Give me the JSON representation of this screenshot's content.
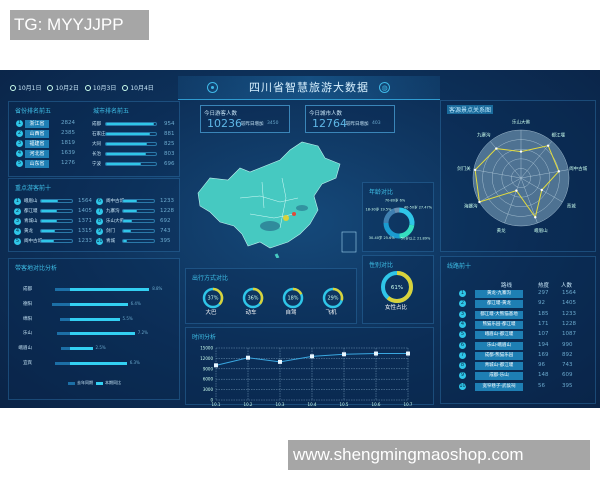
{
  "watermark_top": "TG: MYYJJPP",
  "watermark_bottom": "www.shengmingmaoshop.com",
  "colors": {
    "accent": "#2fc6e8",
    "yellow": "#d9d23a",
    "map": "#46c9c1",
    "bg": "#0d3059"
  },
  "dates": [
    "10月1日",
    "10月2日",
    "10月3日",
    "10月4日"
  ],
  "header": {
    "title": "四川省智慧旅游大数据",
    "left_icon": "target-icon",
    "right_icon": "globe-icon"
  },
  "stats": [
    {
      "label": "今日游客人数",
      "value": "10236",
      "delta_label": "较昨日增加",
      "delta": "3450"
    },
    {
      "label": "今日城市人数",
      "value": "12764",
      "delta_label": "较昨日增加",
      "delta": "403"
    }
  ],
  "province_rank": {
    "title": "省份排名前五",
    "items": [
      {
        "rank": "1",
        "name": "浙江省",
        "value": "2824"
      },
      {
        "rank": "2",
        "name": "山西省",
        "value": "2385"
      },
      {
        "rank": "3",
        "name": "福建省",
        "value": "1819"
      },
      {
        "rank": "4",
        "name": "河北省",
        "value": "1639"
      },
      {
        "rank": "5",
        "name": "山东省",
        "value": "1276"
      }
    ]
  },
  "city_rank": {
    "title": "城市排名前五",
    "items": [
      {
        "name": "成都",
        "value": "954",
        "pct": 0.95
      },
      {
        "name": "石家庄",
        "value": "881",
        "pct": 0.88
      },
      {
        "name": "大同",
        "value": "825",
        "pct": 0.82
      },
      {
        "name": "长治",
        "value": "803",
        "pct": 0.8
      },
      {
        "name": "宁波",
        "value": "696",
        "pct": 0.7
      }
    ]
  },
  "spots_top": {
    "title": "重点游客前十",
    "left": [
      {
        "rank": "1",
        "name": "峨眉山",
        "value": "1564",
        "pct": 0.55
      },
      {
        "rank": "2",
        "name": "都江堰",
        "value": "1405",
        "pct": 0.5
      },
      {
        "rank": "3",
        "name": "青城山",
        "value": "1371",
        "pct": 0.5
      },
      {
        "rank": "4",
        "name": "黄龙",
        "value": "1315",
        "pct": 0.45
      },
      {
        "rank": "5",
        "name": "阆中古城",
        "value": "1233",
        "pct": 0.42
      }
    ],
    "right": [
      {
        "rank": "6",
        "name": "阆中古城",
        "value": "1233",
        "pct": 0.45
      },
      {
        "rank": "7",
        "name": "九寨沟",
        "value": "1228",
        "pct": 0.44
      },
      {
        "rank": "8",
        "name": "乐山大佛",
        "value": "692",
        "pct": 0.28
      },
      {
        "rank": "9",
        "name": "剑门",
        "value": "743",
        "pct": 0.25
      },
      {
        "rank": "10",
        "name": "青城",
        "value": "395",
        "pct": 0.12
      }
    ]
  },
  "chart_data": [
    {
      "type": "bar",
      "title": "带客地对比分析",
      "categories": [
        "成都",
        "德阳",
        "绵阳",
        "乐山",
        "峨眉山",
        "宜宾"
      ],
      "series": [
        {
          "name": "去年同期",
          "values": [
            1.9,
            2.2,
            1.3,
            1.6,
            1.1,
            1.9
          ]
        },
        {
          "name": "本期同比",
          "values": [
            8.8,
            6.4,
            5.5,
            7.2,
            2.5,
            6.3
          ]
        }
      ],
      "value_labels": [
        "8.8%",
        "6.4%",
        "5.5%",
        "7.2%",
        "2.5%",
        "6.3%"
      ],
      "legend": "bottom"
    },
    {
      "type": "pie",
      "title": "年龄对比",
      "donut": true,
      "slices": [
        {
          "label": "40-50岁",
          "value": 27.47
        },
        {
          "label": "50岁以上",
          "value": 21.89
        },
        {
          "label": "30-40岁",
          "value": 25.6
        },
        {
          "label": "18-30岁",
          "value": 19.5
        },
        {
          "label": "70-80岁",
          "value": 6.0
        }
      ]
    },
    {
      "type": "pie",
      "title": "出行方式对比",
      "gauges": [
        {
          "label": "大巴",
          "value": 37
        },
        {
          "label": "动车",
          "value": 36
        },
        {
          "label": "自驾",
          "value": 18
        },
        {
          "label": "飞机",
          "value": 29
        }
      ]
    },
    {
      "type": "pie",
      "title": "性别对比",
      "gauges": [
        {
          "label": "女性占比",
          "value": 61
        }
      ]
    },
    {
      "type": "line",
      "title": "时间分析",
      "x": [
        "10.1",
        "10.2",
        "10.3",
        "10.4",
        "10.5",
        "10.6",
        "10.7"
      ],
      "values": [
        10000,
        12200,
        11000,
        12600,
        13200,
        13400,
        13400
      ],
      "ylim": [
        0,
        15000
      ],
      "yticks": [
        "0",
        "3000",
        "6000",
        "9000",
        "12000",
        "15000"
      ],
      "grid": true
    },
    {
      "type": "radar",
      "title": "客源景点关系图",
      "axes": [
        "乐山大佛",
        "都江堰",
        "阆中古城",
        "青城",
        "峨眉山",
        "黄龙",
        "海螺沟",
        "剑门关",
        "九寨沟"
      ],
      "values": [
        0.55,
        0.88,
        0.8,
        0.5,
        0.87,
        0.28,
        1.0,
        0.97,
        0.8
      ],
      "max": 1
    }
  ],
  "routes": {
    "title": "线路前十",
    "headers": [
      "路线",
      "热度",
      "人数"
    ],
    "rows": [
      [
        "黄龙-九寨沟",
        "297",
        "1564"
      ],
      [
        "都江堰-黄龙",
        "92",
        "1405"
      ],
      [
        "都江堰-大熊猫基地",
        "185",
        "1233"
      ],
      [
        "熊猫乐园-都江堰",
        "171",
        "1228"
      ],
      [
        "峨眉山-都江堰",
        "107",
        "1087"
      ],
      [
        "乐山-峨眉山",
        "194",
        "990"
      ],
      [
        "成都-熊猫乐园",
        "169",
        "892"
      ],
      [
        "青城山-都江堰",
        "96",
        "743"
      ],
      [
        "成都-乐山",
        "148",
        "609"
      ],
      [
        "宽窄巷子-武侯祠",
        "56",
        "395"
      ]
    ]
  }
}
